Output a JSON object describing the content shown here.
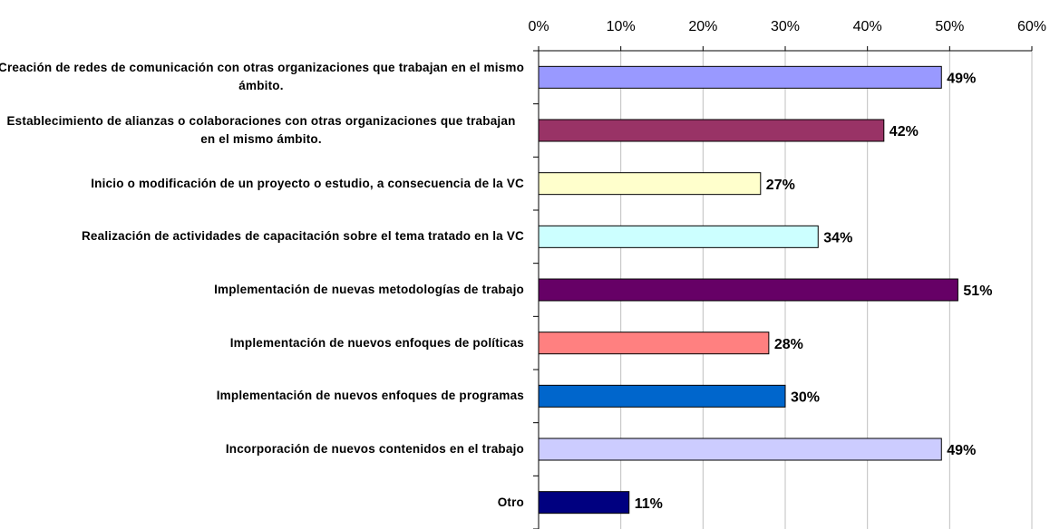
{
  "chart_data": {
    "type": "bar",
    "orientation": "horizontal",
    "categories": [
      "Creación de redes de comunicación con otras organizaciones que trabajan en el mismo ámbito.",
      "Establecimiento de alianzas o colaboraciones con otras organizaciones que trabajan en el mismo ámbito.",
      "Inicio o modificación de un proyecto o estudio, a consecuencia de la VC",
      "Realización de actividades de capacitación sobre el tema tratado en la VC",
      "Implementación de nuevas metodologías de trabajo",
      "Implementación de nuevos enfoques de políticas",
      "Implementación de nuevos enfoques de programas",
      "Incorporación de nuevos contenidos en el trabajo",
      "Otro"
    ],
    "values": [
      49,
      42,
      27,
      34,
      51,
      28,
      30,
      49,
      11
    ],
    "value_labels": [
      "49%",
      "42%",
      "27%",
      "34%",
      "51%",
      "28%",
      "30%",
      "49%",
      "11%"
    ],
    "colors": [
      "#9999ff",
      "#993366",
      "#ffffcc",
      "#ccffff",
      "#660066",
      "#ff8080",
      "#0066cc",
      "#ccccff",
      "#000080"
    ],
    "xlim": [
      0,
      60
    ],
    "xticks": [
      {
        "value": 0,
        "label": "0%"
      },
      {
        "value": 10,
        "label": "10%"
      },
      {
        "value": 20,
        "label": "20%"
      },
      {
        "value": 30,
        "label": "30%"
      },
      {
        "value": 40,
        "label": "40%"
      },
      {
        "value": 50,
        "label": "50%"
      },
      {
        "value": 60,
        "label": "60%"
      }
    ],
    "grid": true
  }
}
